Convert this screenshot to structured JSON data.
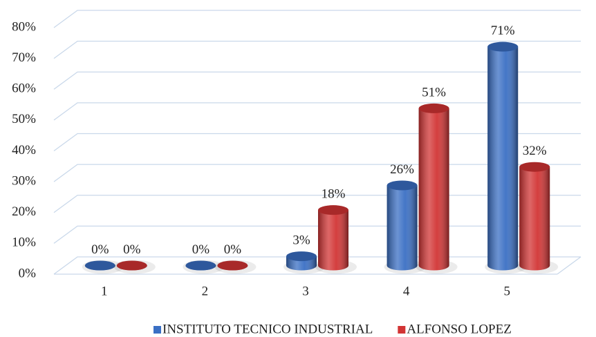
{
  "chart_data": {
    "type": "bar",
    "categories": [
      "1",
      "2",
      "3",
      "4",
      "5"
    ],
    "series": [
      {
        "name": "INSTITUTO TECNICO INDUSTRIAL",
        "color": "#3a6fc4",
        "values": [
          0,
          0,
          3,
          26,
          71
        ],
        "value_labels": [
          "0%",
          "0%",
          "3%",
          "26%",
          "71%"
        ]
      },
      {
        "name": "ALFONSO LOPEZ",
        "color": "#d23434",
        "values": [
          0,
          0,
          18,
          51,
          32
        ],
        "value_labels": [
          "0%",
          "0%",
          "18%",
          "51%",
          "32%"
        ]
      }
    ],
    "ylim": [
      0,
      80
    ],
    "yticks": [
      {
        "value": 0,
        "label": "0%"
      },
      {
        "value": 10,
        "label": "10%"
      },
      {
        "value": 20,
        "label": "20%"
      },
      {
        "value": 30,
        "label": "30%"
      },
      {
        "value": 40,
        "label": "40%"
      },
      {
        "value": 50,
        "label": "50%"
      },
      {
        "value": 60,
        "label": "60%"
      },
      {
        "value": 70,
        "label": "70%"
      },
      {
        "value": 80,
        "label": "80%"
      }
    ],
    "grid": true,
    "legend": "bottom"
  }
}
